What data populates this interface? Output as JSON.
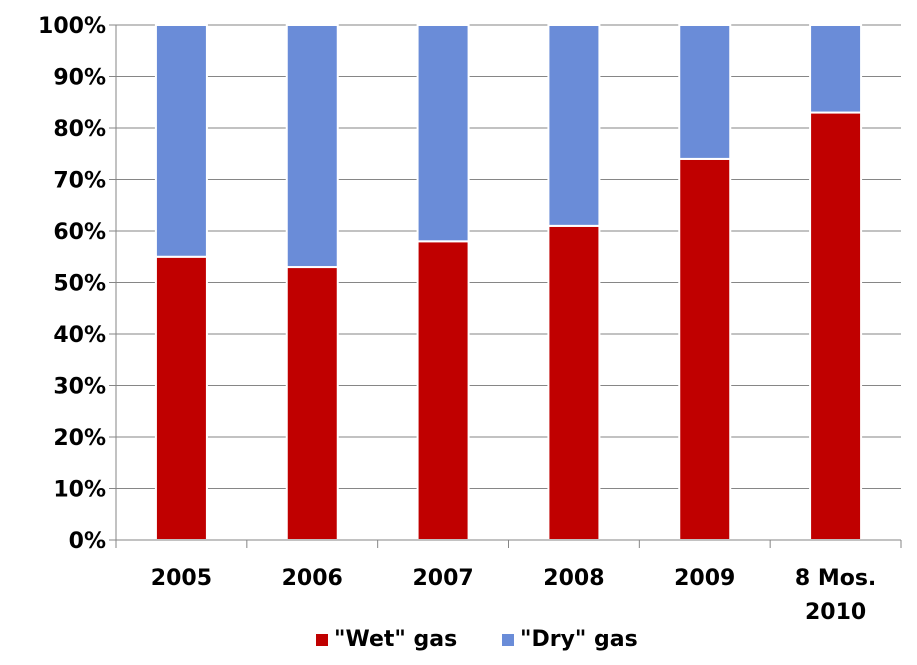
{
  "chart_data": {
    "type": "bar",
    "stacked": true,
    "categories": [
      "2005",
      "2006",
      "2007",
      "2008",
      "2009",
      "8 Mos.\n2010"
    ],
    "series": [
      {
        "name": "\"Wet\" gas",
        "color": "#c00000",
        "values": [
          55,
          53,
          58,
          61,
          74,
          83
        ]
      },
      {
        "name": "\"Dry\" gas",
        "color": "#6a8cd8",
        "values": [
          45,
          47,
          42,
          39,
          26,
          17
        ]
      }
    ],
    "ylim": [
      0,
      100
    ],
    "yticks": [
      0,
      10,
      20,
      30,
      40,
      50,
      60,
      70,
      80,
      90,
      100
    ],
    "ytick_labels": [
      "0%",
      "10%",
      "20%",
      "30%",
      "40%",
      "50%",
      "60%",
      "70%",
      "80%",
      "90%",
      "100%"
    ],
    "grid": true,
    "legend_position": "bottom",
    "title": "",
    "xlabel": "",
    "ylabel": ""
  }
}
